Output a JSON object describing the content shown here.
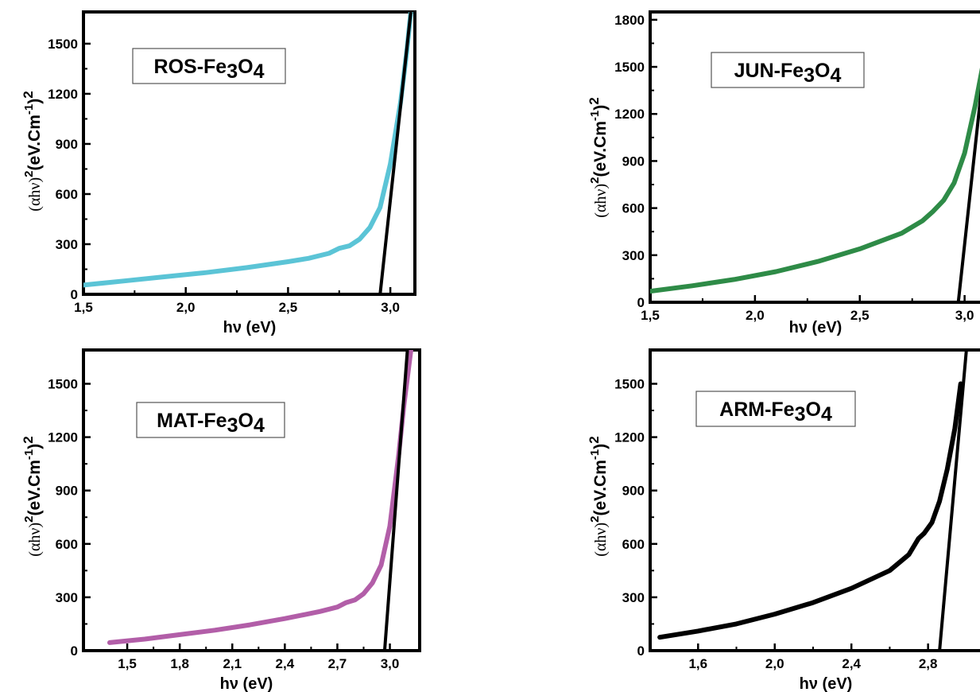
{
  "chart_data": [
    {
      "type": "line",
      "legend": {
        "base": "ROS-Fe",
        "sub1": "3",
        "mid": "O",
        "sub2": "4"
      },
      "xlabel": "hν (eV)",
      "ylabel": {
        "open": "(αhν)",
        "sup1": "2",
        "middle": "(eV.Cm",
        "sup2": "-1",
        "close": ")",
        "sup3": "2"
      },
      "xlim": [
        1.5,
        3.12
      ],
      "ylim": [
        0,
        1690
      ],
      "xticks": [
        1.5,
        2.0,
        2.5,
        3.0
      ],
      "xtick_labels": [
        "1,5",
        "2,0",
        "2,5",
        "3,0"
      ],
      "yticks": [
        0,
        300,
        600,
        900,
        1200,
        1500
      ],
      "ytick_labels": [
        "0",
        "300",
        "600",
        "900",
        "1200",
        "1500"
      ],
      "series": [
        {
          "color": "#5bc4d6",
          "x": [
            1.5,
            1.7,
            1.9,
            2.1,
            2.3,
            2.5,
            2.6,
            2.7,
            2.75,
            2.8,
            2.85,
            2.9,
            2.95,
            3.0,
            3.05,
            3.08,
            3.1
          ],
          "y": [
            55,
            80,
            105,
            130,
            160,
            195,
            215,
            245,
            275,
            290,
            330,
            400,
            520,
            780,
            1150,
            1450,
            1690
          ]
        }
      ],
      "tangent": {
        "x": [
          2.95,
          3.1
        ],
        "y": [
          0,
          1690
        ]
      }
    },
    {
      "type": "line",
      "legend": {
        "base": "JUN-Fe",
        "sub1": "3",
        "mid": "O",
        "sub2": "4"
      },
      "xlabel": "hν (eV)",
      "ylabel": {
        "open": "(αhν)",
        "sup1": "2",
        "middle": "(eV.Cm",
        "sup2": "-1",
        "close": ")",
        "sup3": "2"
      },
      "xlim": [
        1.5,
        3.1
      ],
      "ylim": [
        0,
        1850
      ],
      "xticks": [
        1.5,
        2.0,
        2.5,
        3.0
      ],
      "xtick_labels": [
        "1,5",
        "2,0",
        "2,5",
        "3,0"
      ],
      "yticks": [
        0,
        300,
        600,
        900,
        1200,
        1500,
        1800
      ],
      "ytick_labels": [
        "0",
        "300",
        "600",
        "900",
        "1200",
        "1500",
        "1800"
      ],
      "series": [
        {
          "color": "#2e8b47",
          "x": [
            1.5,
            1.7,
            1.9,
            2.1,
            2.3,
            2.5,
            2.6,
            2.7,
            2.75,
            2.8,
            2.85,
            2.9,
            2.95,
            3.0,
            3.05,
            3.1
          ],
          "y": [
            70,
            105,
            145,
            195,
            260,
            340,
            390,
            440,
            480,
            520,
            580,
            650,
            760,
            950,
            1250,
            1600
          ]
        }
      ],
      "tangent": {
        "x": [
          2.97,
          3.11
        ],
        "y": [
          0,
          1720
        ]
      }
    },
    {
      "type": "line",
      "legend": {
        "base": "MAT-Fe",
        "sub1": "3",
        "mid": "O",
        "sub2": "4"
      },
      "xlabel": "hν (eV)",
      "ylabel": {
        "open": "(αhν)",
        "sup1": "2",
        "middle": "(eV.Cm",
        "sup2": "-1",
        "close": ")",
        "sup3": "2"
      },
      "xlim": [
        1.25,
        3.17
      ],
      "ylim": [
        0,
        1690
      ],
      "xticks": [
        1.5,
        1.8,
        2.1,
        2.4,
        2.7,
        3.0
      ],
      "xtick_labels": [
        "1,5",
        "1,8",
        "2,1",
        "2,4",
        "2,7",
        "3,0"
      ],
      "yticks": [
        0,
        300,
        600,
        900,
        1200,
        1500
      ],
      "ytick_labels": [
        "0",
        "300",
        "600",
        "900",
        "1200",
        "1500"
      ],
      "series": [
        {
          "color": "#b25ea8",
          "x": [
            1.4,
            1.6,
            1.8,
            2.0,
            2.2,
            2.4,
            2.6,
            2.7,
            2.75,
            2.8,
            2.85,
            2.9,
            2.95,
            3.0,
            3.05,
            3.08,
            3.12
          ],
          "y": [
            45,
            65,
            90,
            115,
            145,
            180,
            220,
            245,
            270,
            285,
            320,
            380,
            480,
            700,
            1100,
            1380,
            1690
          ]
        }
      ],
      "tangent": {
        "x": [
          2.97,
          3.1
        ],
        "y": [
          0,
          1690
        ]
      }
    },
    {
      "type": "line",
      "legend": {
        "base": "ARM-Fe",
        "sub1": "3",
        "mid": "O",
        "sub2": "4"
      },
      "xlabel": "hν (eV)",
      "ylabel": {
        "open": "(αhν)",
        "sup1": "2",
        "middle": "(eV.Cm",
        "sup2": "-1",
        "close": ")",
        "sup3": "2"
      },
      "xlim": [
        1.35,
        3.1
      ],
      "ylim": [
        0,
        1690
      ],
      "xticks": [
        1.6,
        2.0,
        2.4,
        2.8
      ],
      "xtick_labels": [
        "1,6",
        "2,0",
        "2,4",
        "2,8"
      ],
      "yticks": [
        0,
        300,
        600,
        900,
        1200,
        1500
      ],
      "ytick_labels": [
        "0",
        "300",
        "600",
        "900",
        "1200",
        "1500"
      ],
      "series": [
        {
          "color": "#000000",
          "x": [
            1.4,
            1.6,
            1.8,
            2.0,
            2.2,
            2.4,
            2.6,
            2.7,
            2.75,
            2.78,
            2.82,
            2.86,
            2.9,
            2.94,
            2.97
          ],
          "y": [
            75,
            110,
            150,
            205,
            270,
            350,
            450,
            540,
            630,
            660,
            720,
            840,
            1020,
            1250,
            1500
          ]
        }
      ],
      "tangent": {
        "x": [
          2.86,
          3.0
        ],
        "y": [
          0,
          1690
        ]
      }
    }
  ]
}
